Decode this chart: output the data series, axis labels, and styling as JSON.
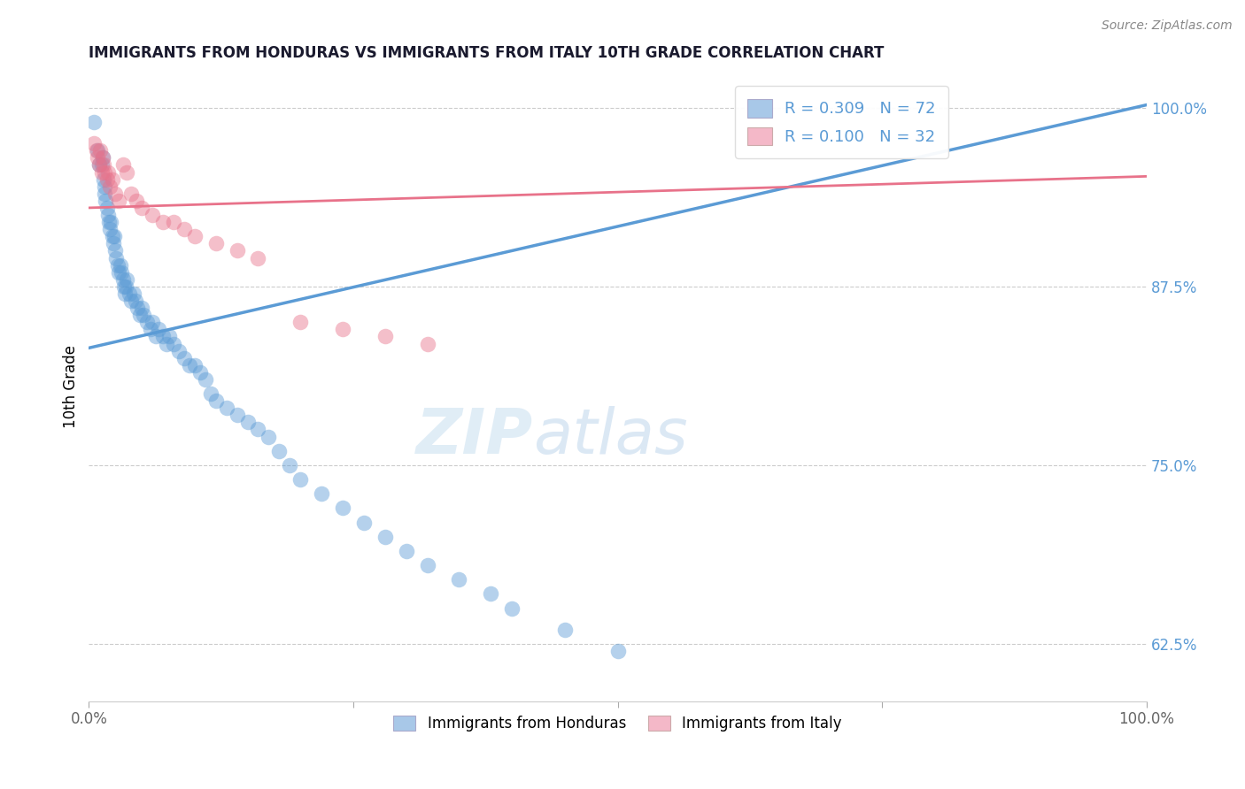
{
  "title": "IMMIGRANTS FROM HONDURAS VS IMMIGRANTS FROM ITALY 10TH GRADE CORRELATION CHART",
  "source": "Source: ZipAtlas.com",
  "ylabel": "10th Grade",
  "y_ticks": [
    0.625,
    0.75,
    0.875,
    1.0
  ],
  "y_tick_labels": [
    "62.5%",
    "75.0%",
    "87.5%",
    "100.0%"
  ],
  "xlim": [
    0.0,
    1.0
  ],
  "ylim": [
    0.585,
    1.025
  ],
  "watermark_zip": "ZIP",
  "watermark_atlas": "atlas",
  "blue_color": "#5b9bd5",
  "pink_color": "#e8728a",
  "blue_fill": "#a8c8e8",
  "pink_fill": "#f4b8c8",
  "R_honduras": 0.309,
  "N_honduras": 72,
  "R_italy": 0.1,
  "N_italy": 32,
  "blue_trendline_y_start": 0.832,
  "blue_trendline_y_end": 1.002,
  "pink_trendline_y_start": 0.93,
  "pink_trendline_y_end": 0.952,
  "blue_scatter_x": [
    0.005,
    0.008,
    0.01,
    0.012,
    0.013,
    0.014,
    0.015,
    0.015,
    0.016,
    0.017,
    0.018,
    0.019,
    0.02,
    0.021,
    0.022,
    0.023,
    0.024,
    0.025,
    0.026,
    0.027,
    0.028,
    0.03,
    0.031,
    0.032,
    0.033,
    0.034,
    0.035,
    0.036,
    0.038,
    0.04,
    0.042,
    0.044,
    0.046,
    0.048,
    0.05,
    0.052,
    0.055,
    0.058,
    0.06,
    0.063,
    0.066,
    0.07,
    0.073,
    0.076,
    0.08,
    0.085,
    0.09,
    0.095,
    0.1,
    0.105,
    0.11,
    0.115,
    0.12,
    0.13,
    0.14,
    0.15,
    0.16,
    0.17,
    0.18,
    0.19,
    0.2,
    0.22,
    0.24,
    0.26,
    0.28,
    0.3,
    0.32,
    0.35,
    0.38,
    0.4,
    0.45,
    0.5
  ],
  "blue_scatter_y": [
    0.99,
    0.97,
    0.96,
    0.96,
    0.965,
    0.95,
    0.945,
    0.94,
    0.935,
    0.93,
    0.925,
    0.92,
    0.915,
    0.92,
    0.91,
    0.905,
    0.91,
    0.9,
    0.895,
    0.89,
    0.885,
    0.89,
    0.885,
    0.88,
    0.875,
    0.87,
    0.875,
    0.88,
    0.87,
    0.865,
    0.87,
    0.865,
    0.86,
    0.855,
    0.86,
    0.855,
    0.85,
    0.845,
    0.85,
    0.84,
    0.845,
    0.84,
    0.835,
    0.84,
    0.835,
    0.83,
    0.825,
    0.82,
    0.82,
    0.815,
    0.81,
    0.8,
    0.795,
    0.79,
    0.785,
    0.78,
    0.775,
    0.77,
    0.76,
    0.75,
    0.74,
    0.73,
    0.72,
    0.71,
    0.7,
    0.69,
    0.68,
    0.67,
    0.66,
    0.65,
    0.635,
    0.62
  ],
  "pink_scatter_x": [
    0.005,
    0.007,
    0.008,
    0.01,
    0.011,
    0.012,
    0.013,
    0.014,
    0.015,
    0.017,
    0.018,
    0.02,
    0.022,
    0.025,
    0.028,
    0.032,
    0.036,
    0.04,
    0.045,
    0.05,
    0.06,
    0.07,
    0.08,
    0.09,
    0.1,
    0.12,
    0.14,
    0.16,
    0.2,
    0.24,
    0.28,
    0.32
  ],
  "pink_scatter_y": [
    0.975,
    0.97,
    0.965,
    0.96,
    0.97,
    0.955,
    0.965,
    0.96,
    0.955,
    0.95,
    0.955,
    0.945,
    0.95,
    0.94,
    0.935,
    0.96,
    0.955,
    0.94,
    0.935,
    0.93,
    0.925,
    0.92,
    0.92,
    0.915,
    0.91,
    0.905,
    0.9,
    0.895,
    0.85,
    0.845,
    0.84,
    0.835
  ]
}
